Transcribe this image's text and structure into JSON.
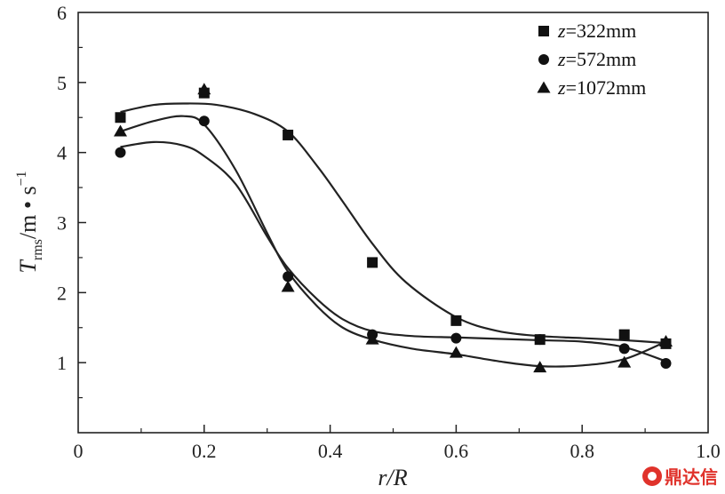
{
  "chart_data": {
    "type": "scatter",
    "title": "",
    "xlabel": "r/R",
    "ylabel": "T",
    "ylabel_sub": "rms",
    "ylabel_unit": "/m • s",
    "ylabel_sup": "−1",
    "xlim": [
      0,
      1.0
    ],
    "ylim": [
      0,
      6
    ],
    "x_ticks": [
      0,
      0.2,
      0.4,
      0.6,
      0.8,
      1.0
    ],
    "x_tick_labels": [
      "0",
      "0.2",
      "0.4",
      "0.6",
      "0.8",
      "1.0"
    ],
    "y_ticks": [
      1,
      2,
      3,
      4,
      5,
      6
    ],
    "y_tick_labels": [
      "1",
      "2",
      "3",
      "4",
      "5",
      "6"
    ],
    "grid": false,
    "legend_position": "top-right",
    "series": [
      {
        "name_var": "z",
        "name_rest": "=322mm",
        "marker": "square",
        "x": [
          0.067,
          0.2,
          0.333,
          0.467,
          0.6,
          0.733,
          0.867,
          0.933
        ],
        "y": [
          4.5,
          4.85,
          4.25,
          2.43,
          1.6,
          1.33,
          1.4,
          1.27
        ],
        "fit_curve": [
          [
            0.067,
            4.58
          ],
          [
            0.12,
            4.68
          ],
          [
            0.167,
            4.7
          ],
          [
            0.22,
            4.68
          ],
          [
            0.28,
            4.55
          ],
          [
            0.333,
            4.3
          ],
          [
            0.38,
            3.8
          ],
          [
            0.42,
            3.3
          ],
          [
            0.467,
            2.7
          ],
          [
            0.52,
            2.15
          ],
          [
            0.6,
            1.65
          ],
          [
            0.667,
            1.45
          ],
          [
            0.733,
            1.38
          ],
          [
            0.8,
            1.35
          ],
          [
            0.867,
            1.32
          ],
          [
            0.933,
            1.28
          ]
        ]
      },
      {
        "name_var": "z",
        "name_rest": "=572mm",
        "marker": "circle",
        "x": [
          0.067,
          0.2,
          0.333,
          0.467,
          0.6,
          0.733,
          0.867,
          0.933
        ],
        "y": [
          4.0,
          4.45,
          2.23,
          1.4,
          1.35,
          1.33,
          1.2,
          0.99
        ],
        "fit_curve": [
          [
            0.067,
            4.08
          ],
          [
            0.12,
            4.15
          ],
          [
            0.167,
            4.1
          ],
          [
            0.2,
            3.95
          ],
          [
            0.25,
            3.55
          ],
          [
            0.3,
            2.8
          ],
          [
            0.333,
            2.35
          ],
          [
            0.38,
            1.9
          ],
          [
            0.42,
            1.62
          ],
          [
            0.467,
            1.45
          ],
          [
            0.53,
            1.38
          ],
          [
            0.6,
            1.36
          ],
          [
            0.667,
            1.34
          ],
          [
            0.733,
            1.32
          ],
          [
            0.8,
            1.3
          ],
          [
            0.867,
            1.22
          ],
          [
            0.933,
            1.02
          ]
        ]
      },
      {
        "name_var": "z",
        "name_rest": "=1072mm",
        "marker": "triangle",
        "x": [
          0.067,
          0.2,
          0.333,
          0.467,
          0.6,
          0.733,
          0.867,
          0.933
        ],
        "y": [
          4.3,
          4.9,
          2.08,
          1.33,
          1.14,
          0.93,
          1.0,
          1.3
        ],
        "fit_curve": [
          [
            0.067,
            4.3
          ],
          [
            0.12,
            4.45
          ],
          [
            0.167,
            4.52
          ],
          [
            0.2,
            4.4
          ],
          [
            0.25,
            3.75
          ],
          [
            0.3,
            2.85
          ],
          [
            0.333,
            2.3
          ],
          [
            0.38,
            1.8
          ],
          [
            0.42,
            1.5
          ],
          [
            0.467,
            1.33
          ],
          [
            0.53,
            1.2
          ],
          [
            0.6,
            1.12
          ],
          [
            0.667,
            1.02
          ],
          [
            0.733,
            0.95
          ],
          [
            0.8,
            0.96
          ],
          [
            0.867,
            1.05
          ],
          [
            0.933,
            1.3
          ]
        ]
      }
    ]
  },
  "watermark": {
    "text": "鼎达信"
  }
}
